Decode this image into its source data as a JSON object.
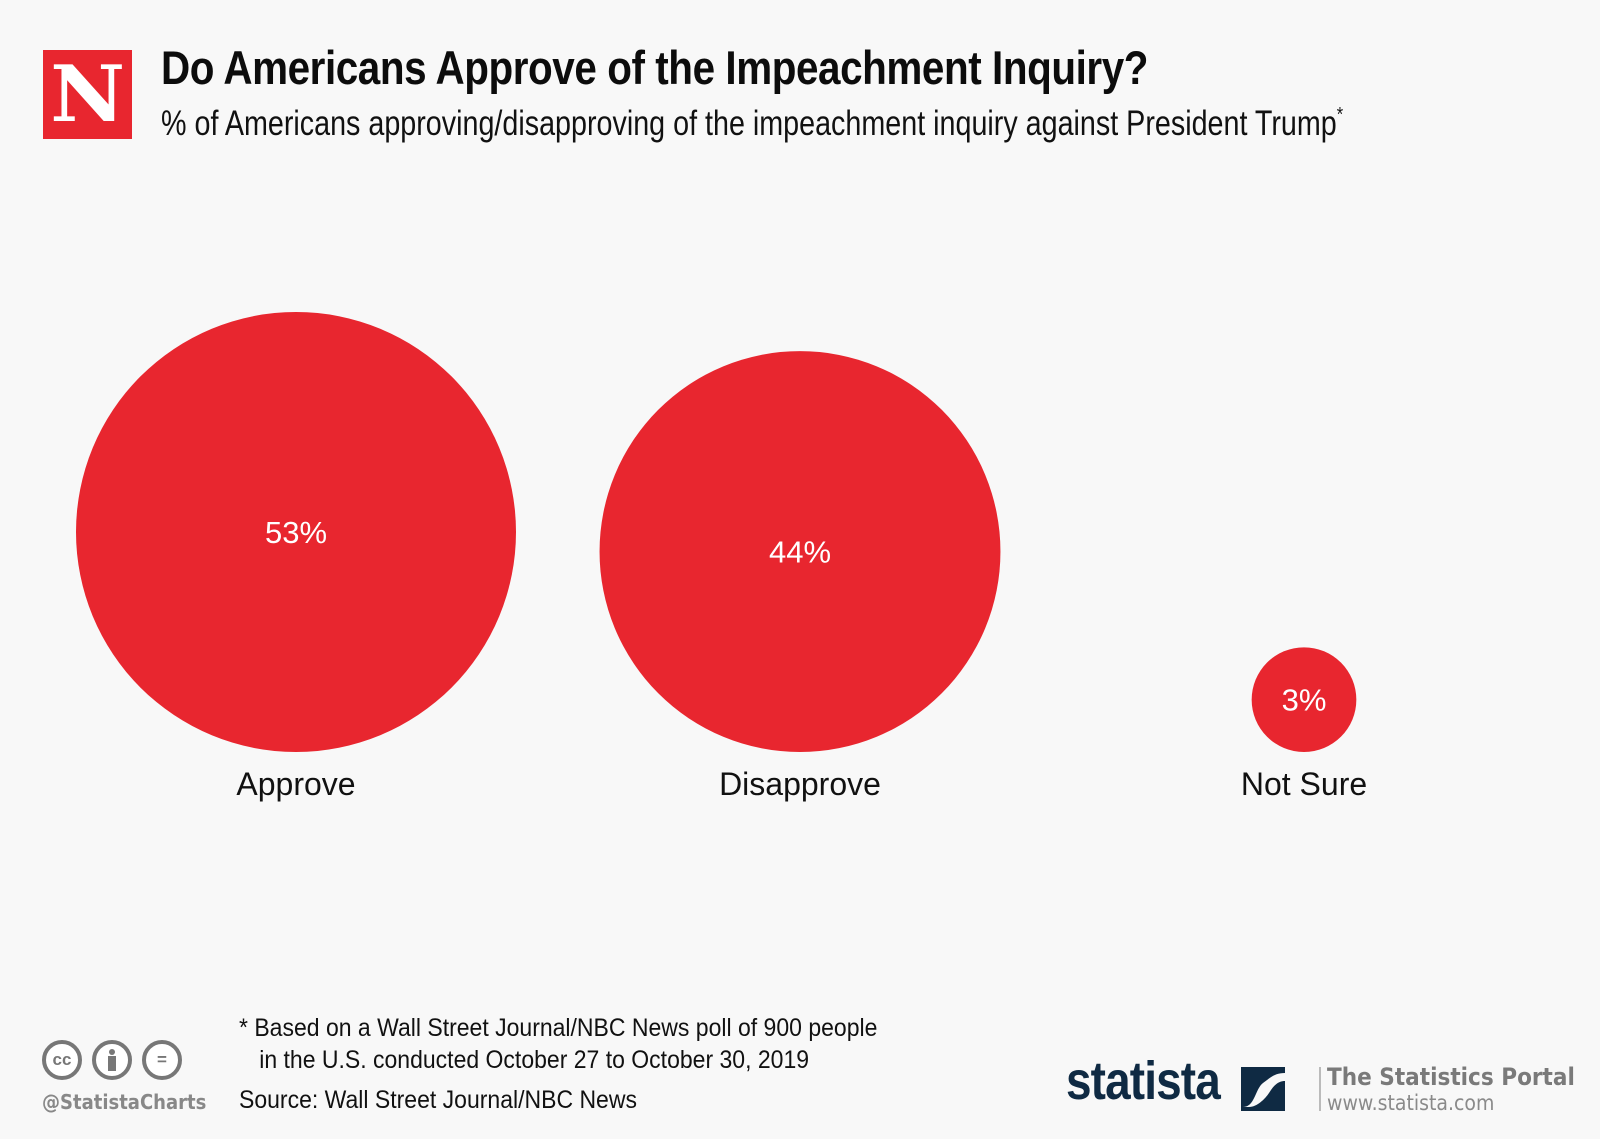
{
  "header": {
    "logo_letter": "N",
    "title": "Do Americans Approve of the Impeachment Inquiry?",
    "subtitle": "% of Americans approving/disapproving of the impeachment inquiry against President Trump",
    "subtitle_marker": "*"
  },
  "chart_data": {
    "type": "bubble",
    "title": "Do Americans Approve of the Impeachment Inquiry?",
    "subtitle": "% of Americans approving/disapproving of the impeachment inquiry against President Trump*",
    "categories": [
      "Approve",
      "Disapprove",
      "Not Sure"
    ],
    "values": [
      53,
      44,
      3
    ],
    "unit": "%",
    "data_labels": [
      "53%",
      "44%",
      "3%"
    ],
    "color": "#e8262f",
    "label_color": "#ffffff",
    "xlabel": "",
    "ylabel": "",
    "grid": false,
    "legend": "none"
  },
  "footer": {
    "footnote_line1": "* Based on a Wall Street Journal/NBC News poll of 900 people",
    "footnote_line2": "in the U.S. conducted October 27 to October 30, 2019",
    "source": "Source: Wall Street Journal/NBC News",
    "handle": "@StatistaCharts",
    "cc_icons": [
      "cc-icon",
      "attribution-icon",
      "no-derivatives-icon"
    ],
    "cc_glyphs": [
      "cc",
      "i",
      "="
    ],
    "brand": "statista",
    "portal_title": "The Statistics Portal",
    "portal_url": "www.statista.com"
  }
}
